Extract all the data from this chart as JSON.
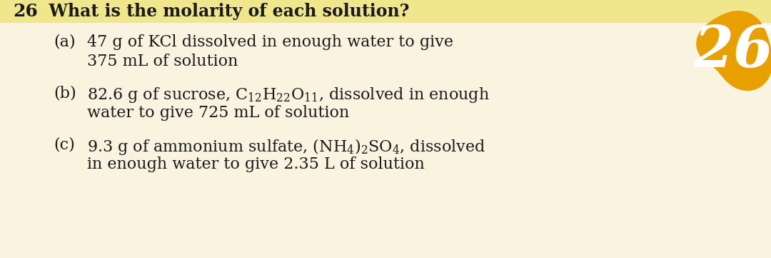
{
  "bg_color": "#faf3e0",
  "highlight_color": "#f0e68c",
  "orange_color": "#e8a000",
  "text_color": "#1a1a1a",
  "title_number": "26",
  "title_text": "  What is the molarity of each solution?",
  "part_a_label": "(a)",
  "part_a_line1": "47 g of KCl dissolved in enough water to give",
  "part_a_line2": "375 mL of solution",
  "part_b_label": "(b)",
  "part_b_line1": "82.6 g of sucrose, $\\mathregular{C_{12}H_{22}O_{11}}$, dissolved in enough",
  "part_b_line2": "water to give 725 mL of solution",
  "part_c_label": "(c)",
  "part_c_line1": "9.3 g of ammonium sulfate, $\\mathregular{(NH_4)_2SO_4}$, dissolved",
  "part_c_line2": "in enough water to give 2.35 L of solution",
  "font_size_title_num": 18,
  "font_size_title": 17,
  "font_size_body": 16,
  "font_size_26_badge": 58
}
